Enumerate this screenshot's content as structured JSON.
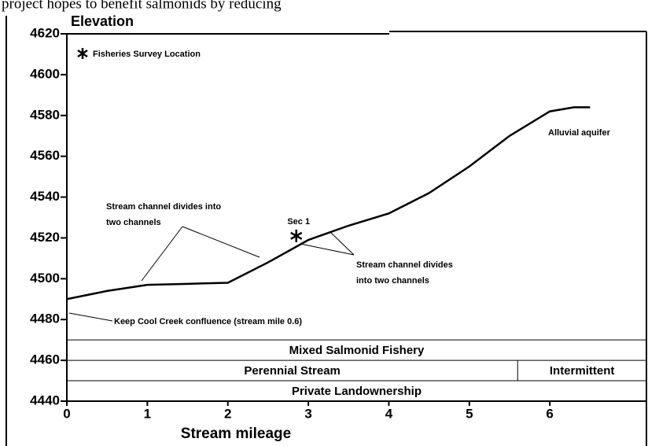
{
  "header": "project hopes to benefit salmonids by reducing",
  "chart_data": {
    "type": "line",
    "y_label": "Elevation",
    "x_label": "Stream mileage",
    "xlim": [
      0,
      7.2
    ],
    "xticks": [
      0,
      1,
      2,
      3,
      4,
      5,
      6
    ],
    "ylim": [
      4440,
      4620
    ],
    "yticks": [
      4440,
      4460,
      4480,
      4500,
      4520,
      4540,
      4560,
      4580,
      4600,
      4620
    ],
    "series": [
      {
        "color": "#000000",
        "x": [
          0,
          0.5,
          1,
          1.5,
          2,
          2.5,
          3,
          3.5,
          4,
          4.5,
          5,
          5.5,
          6,
          6.3,
          6.5
        ],
        "values": [
          4490,
          4494,
          4497,
          4497.5,
          4498,
          4508,
          4519,
          4526,
          4532,
          4542,
          4555,
          4570,
          4582,
          4584,
          4584
        ]
      }
    ],
    "survey_points": [
      {
        "label": "Sec 1",
        "x": 2.85,
        "y": 4521
      }
    ],
    "legend": "Fisheries Survey Location",
    "annotations": [
      {
        "lines": [
          "Stream channel divides into",
          "two channels"
        ]
      },
      {
        "lines": [
          "Stream channel divides",
          "into two channels"
        ]
      },
      {
        "lines": [
          "Alluvial aquifer"
        ]
      },
      {
        "lines": [
          "Keep Cool Creek confluence (stream mile 0.6)"
        ]
      }
    ],
    "bands": [
      {
        "y": [
          4460,
          4470
        ],
        "cells": [
          {
            "label": "Mixed Salmonid Fishery",
            "from": 0,
            "to": 7.2
          }
        ]
      },
      {
        "y": [
          4450,
          4460
        ],
        "cells": [
          {
            "label": "Perennial Stream",
            "from": 0,
            "to": 5.6
          },
          {
            "label": "Intermittent",
            "from": 5.6,
            "to": 7.2
          }
        ]
      },
      {
        "y": [
          4440,
          4450
        ],
        "cells": [
          {
            "label": "Private Landownership",
            "from": 0,
            "to": 7.2
          }
        ]
      }
    ]
  }
}
